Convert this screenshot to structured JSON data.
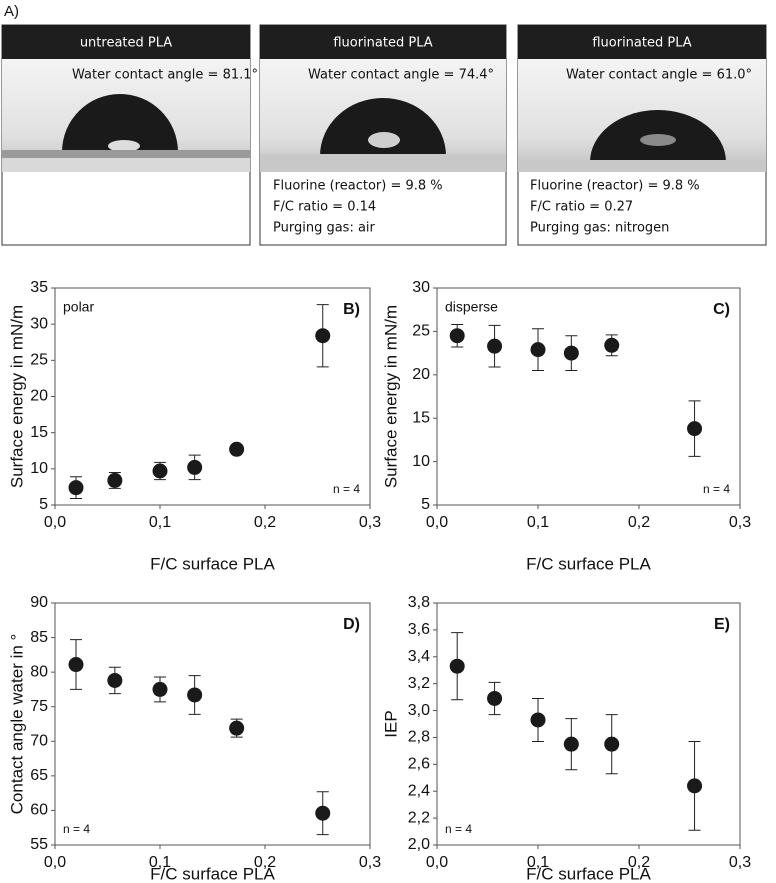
{
  "figure": {
    "label": "A)",
    "panels": [
      {
        "title": "untreated PLA",
        "caption": "Water contact angle = 81.1°",
        "notes": []
      },
      {
        "title": "fluorinated PLA",
        "caption": "Water contact angle = 74.4°",
        "notes": [
          "Fluorine (reactor) = 9.8 %",
          "F/C ratio = 0.14",
          "Purging gas: air"
        ]
      },
      {
        "title": "fluorinated PLA",
        "caption": "Water contact angle = 61.0°",
        "notes": [
          "Fluorine (reactor) = 9.8 %",
          "F/C ratio = 0.27",
          "Purging gas: nitrogen"
        ]
      }
    ]
  },
  "chart_data": [
    {
      "type": "scatter",
      "panel_label": "B)",
      "note": "polar",
      "sample_note": "n = 4",
      "xlabel": "F/C surface PLA",
      "ylabel": "Surface energy in mN/m",
      "color": "#1a1a1a",
      "x": [
        0.02,
        0.057,
        0.1,
        0.133,
        0.173,
        0.255
      ],
      "values": [
        7.4,
        8.4,
        9.7,
        10.2,
        12.7,
        28.4
      ],
      "errors": [
        1.5,
        1.1,
        1.2,
        1.7,
        0.5,
        4.3
      ],
      "xlim": [
        0,
        0.3
      ],
      "xticks": [
        {
          "value": 0,
          "label": "0,0"
        },
        {
          "value": 0.1,
          "label": "0,1"
        },
        {
          "value": 0.2,
          "label": "0,2"
        },
        {
          "value": 0.3,
          "label": "0,3"
        }
      ],
      "ylim": [
        5,
        35
      ],
      "yticks": [
        5,
        10,
        15,
        20,
        25,
        30,
        35
      ]
    },
    {
      "type": "scatter",
      "panel_label": "C)",
      "note": "disperse",
      "sample_note": "n = 4",
      "xlabel": "F/C surface PLA",
      "ylabel": "Surface energy in mN/m",
      "color": "#1a1a1a",
      "x": [
        0.02,
        0.057,
        0.1,
        0.133,
        0.173,
        0.255
      ],
      "values": [
        24.5,
        23.3,
        22.9,
        22.5,
        23.4,
        13.8
      ],
      "errors": [
        1.3,
        2.4,
        2.4,
        2.0,
        1.2,
        3.2
      ],
      "xlim": [
        0,
        0.3
      ],
      "xticks": [
        {
          "value": 0,
          "label": "0,0"
        },
        {
          "value": 0.1,
          "label": "0,1"
        },
        {
          "value": 0.2,
          "label": "0,2"
        },
        {
          "value": 0.3,
          "label": "0,3"
        }
      ],
      "ylim": [
        5,
        30
      ],
      "yticks": [
        5,
        10,
        15,
        20,
        25,
        30
      ]
    },
    {
      "type": "scatter",
      "panel_label": "D)",
      "sample_note": "n = 4",
      "xlabel": "F/C surface PLA",
      "ylabel": "Contact angle water in °",
      "color": "#1a1a1a",
      "x": [
        0.02,
        0.057,
        0.1,
        0.133,
        0.173,
        0.255
      ],
      "values": [
        81.1,
        78.8,
        77.5,
        76.7,
        71.9,
        59.6
      ],
      "errors": [
        3.6,
        1.9,
        1.8,
        2.8,
        1.3,
        3.1
      ],
      "xlim": [
        0,
        0.3
      ],
      "xticks": [
        {
          "value": 0,
          "label": "0,0"
        },
        {
          "value": 0.1,
          "label": "0,1"
        },
        {
          "value": 0.2,
          "label": "0,2"
        },
        {
          "value": 0.3,
          "label": "0,3"
        }
      ],
      "ylim": [
        55,
        90
      ],
      "yticks": [
        55,
        60,
        65,
        70,
        75,
        80,
        85,
        90
      ]
    },
    {
      "type": "scatter",
      "panel_label": "E)",
      "sample_note": "n = 4",
      "xlabel": "F/C surface PLA",
      "ylabel": "IEP",
      "color": "#1a1a1a",
      "x": [
        0.02,
        0.057,
        0.1,
        0.133,
        0.173,
        0.255
      ],
      "values": [
        3.33,
        3.09,
        2.93,
        2.75,
        2.75,
        2.44
      ],
      "errors": [
        0.25,
        0.12,
        0.16,
        0.19,
        0.22,
        0.33
      ],
      "xlim": [
        0,
        0.3
      ],
      "xticks": [
        {
          "value": 0,
          "label": "0,0"
        },
        {
          "value": 0.1,
          "label": "0,1"
        },
        {
          "value": 0.2,
          "label": "0,2"
        },
        {
          "value": 0.3,
          "label": "0,3"
        }
      ],
      "ylim": [
        2.0,
        3.8
      ],
      "yticks": [
        {
          "value": 2.0,
          "label": "2,0"
        },
        {
          "value": 2.2,
          "label": "2,2"
        },
        {
          "value": 2.4,
          "label": "2,4"
        },
        {
          "value": 2.6,
          "label": "2,6"
        },
        {
          "value": 2.8,
          "label": "2,8"
        },
        {
          "value": 3.0,
          "label": "3,0"
        },
        {
          "value": 3.2,
          "label": "3,2"
        },
        {
          "value": 3.4,
          "label": "3,4"
        },
        {
          "value": 3.6,
          "label": "3,6"
        },
        {
          "value": 3.8,
          "label": "3,8"
        }
      ]
    }
  ]
}
